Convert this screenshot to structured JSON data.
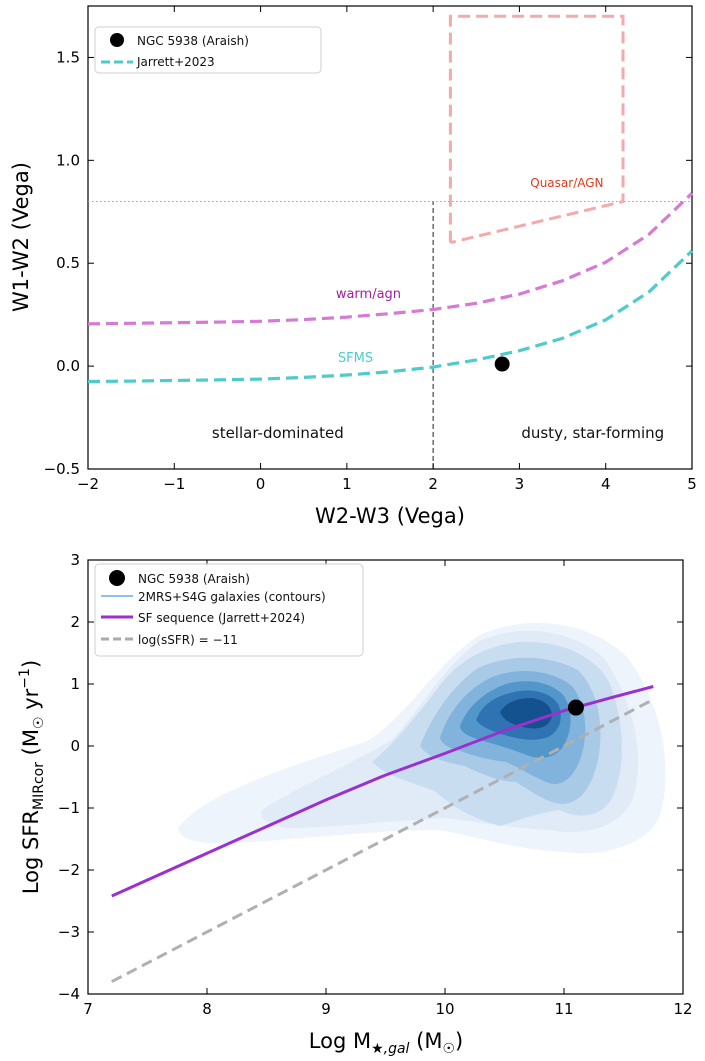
{
  "chart_data": [
    {
      "type": "scatter",
      "xlabel": "W2-W3 (Vega)",
      "ylabel": "W1-W2 (Vega)",
      "xlim": [
        -2,
        5
      ],
      "ylim": [
        -0.5,
        1.75
      ],
      "xticks": [
        -2,
        -1,
        0,
        1,
        2,
        3,
        4,
        5
      ],
      "yticks": [
        -0.5,
        0.0,
        0.5,
        1.0,
        1.5
      ],
      "xtick_labels": [
        "−2",
        "−1",
        "0",
        "1",
        "2",
        "3",
        "4",
        "5"
      ],
      "ytick_labels": [
        "−0.5",
        "0.0",
        "0.5",
        "1.0",
        "1.5"
      ],
      "grid": false,
      "legend_position": "top-left",
      "legend": [
        {
          "label": "NGC 5938 (Araish)",
          "marker": "dot",
          "color": "#000000"
        },
        {
          "label": "Jarrett+2023",
          "marker": "dashed-line",
          "color": "#4ecbcb"
        }
      ],
      "point": {
        "x": 2.8,
        "y": 0.01,
        "color": "#000000"
      },
      "series": [
        {
          "style": "dashed",
          "color": "#4ecbcb",
          "label_on_chart": "SFMS",
          "x": [
            -2.0,
            -1.5,
            -1.0,
            -0.5,
            0.0,
            0.5,
            1.0,
            1.5,
            2.0,
            2.5,
            3.0,
            3.5,
            4.0,
            4.5,
            5.0
          ],
          "y": [
            -0.075,
            -0.073,
            -0.07,
            -0.067,
            -0.063,
            -0.055,
            -0.043,
            -0.027,
            -0.005,
            0.03,
            0.075,
            0.135,
            0.225,
            0.36,
            0.56
          ]
        },
        {
          "style": "dashed",
          "color": "#d77ad6",
          "label_on_chart": "warm/agn",
          "x": [
            -2.0,
            -1.5,
            -1.0,
            -0.5,
            0.0,
            0.5,
            1.0,
            1.5,
            2.0,
            2.5,
            3.0,
            3.5,
            4.0,
            4.5,
            5.0
          ],
          "y": [
            0.205,
            0.208,
            0.211,
            0.214,
            0.218,
            0.226,
            0.238,
            0.255,
            0.275,
            0.305,
            0.35,
            0.415,
            0.505,
            0.64,
            0.84
          ]
        }
      ],
      "qso_box": {
        "x": [
          2.2,
          2.2,
          4.2,
          4.2,
          2.2
        ],
        "y": [
          0.6,
          1.7,
          1.7,
          0.8,
          0.6
        ],
        "color": "#f4aaaa",
        "label": "Quasar/AGN"
      },
      "hline": {
        "y": 0.8,
        "style": "dotted",
        "color": "#f08080"
      },
      "vline": {
        "x": 2.0,
        "y_from": -0.5,
        "y_to": 0.8,
        "style": "dashed",
        "color": "#555555"
      },
      "annotations": {
        "stellar": {
          "text": "stellar-dominated",
          "x": 0.2,
          "y": -0.35
        },
        "dusty": {
          "text": "dusty, star-forming",
          "x": 3.85,
          "y": -0.35
        },
        "warm": {
          "text": "warm/agn",
          "x": 1.25,
          "y": 0.33,
          "color": "#a020a0"
        },
        "sfms": {
          "text": "SFMS",
          "x": 1.1,
          "y": 0.02,
          "color": "#4ecbcb"
        },
        "qso": {
          "text": "Quasar/AGN",
          "x": 3.55,
          "y": 0.87,
          "color": "#e03a1a"
        }
      }
    },
    {
      "type": "scatter",
      "xlabel": "Log M",
      "xlabel_sub": "★,gal",
      "xlabel_unit_open": " (M",
      "xlabel_unit_sub": "☉",
      "xlabel_unit_close": ")",
      "ylabel": "Log SFR",
      "ylabel_sub": "MIRcor",
      "ylabel_unit_open": " (M",
      "ylabel_unit_sub": "☉",
      "ylabel_unit_mid": " yr",
      "ylabel_unit_sup": "−1",
      "ylabel_unit_close": ")",
      "xlim": [
        7,
        12
      ],
      "ylim": [
        -4,
        3
      ],
      "xticks": [
        7,
        8,
        9,
        10,
        11,
        12
      ],
      "yticks": [
        -4,
        -3,
        -2,
        -1,
        0,
        1,
        2,
        3
      ],
      "xtick_labels": [
        "7",
        "8",
        "9",
        "10",
        "11",
        "12"
      ],
      "ytick_labels": [
        "−4",
        "−3",
        "−2",
        "−1",
        "0",
        "1",
        "2",
        "3"
      ],
      "grid": false,
      "legend_position": "top-left",
      "legend": [
        {
          "label": "NGC 5938 (Araish)",
          "marker": "dot",
          "color": "#000000"
        },
        {
          "label": "2MRS+S4G galaxies (contours)",
          "marker": "line",
          "color": "#8ec2ee"
        },
        {
          "label": "SF sequence (Jarrett+2024)",
          "marker": "line",
          "color": "#9b2fd0"
        },
        {
          "label": "log(sSFR) = −11",
          "marker": "dashed-line",
          "color": "#aaaaaa"
        }
      ],
      "point": {
        "x": 11.1,
        "y": 0.62,
        "color": "#000000"
      },
      "series": [
        {
          "style": "solid",
          "color": "#9b2fd0",
          "x": [
            7.2,
            8.0,
            8.5,
            9.0,
            9.5,
            10.0,
            10.5,
            11.0,
            11.4,
            11.75
          ],
          "y": [
            -2.42,
            -1.73,
            -1.3,
            -0.87,
            -0.47,
            -0.12,
            0.25,
            0.57,
            0.78,
            0.96
          ]
        },
        {
          "style": "dashed",
          "color": "#b0b0b0",
          "x": [
            7.2,
            11.75
          ],
          "y": [
            -3.8,
            0.75
          ]
        }
      ],
      "contour_colors": [
        "#eef4fb",
        "#dbe8f6",
        "#c6dbef",
        "#a6c9e6",
        "#7fb2db",
        "#4f93c8",
        "#2f73b2",
        "#14518f"
      ]
    }
  ]
}
